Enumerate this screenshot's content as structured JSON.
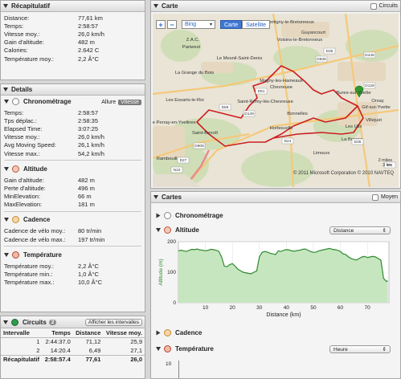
{
  "summary": {
    "title": "Récapitulatif",
    "rows": [
      {
        "k": "Distance:",
        "v": "77,61 km"
      },
      {
        "k": "Temps:",
        "v": "2:58:57"
      },
      {
        "k": "Vitesse moy.:",
        "v": "26,0 km/h"
      },
      {
        "k": "Gain d'altitude:",
        "v": "482 m"
      },
      {
        "k": "Calories:",
        "v": "2.642 C"
      },
      {
        "k": "Température moy.:",
        "v": "2,2 Â°C"
      }
    ]
  },
  "details": {
    "title": "Details",
    "chrono": {
      "title": "Chronométrage",
      "allure": "Allure",
      "vitesse": "Vitesse",
      "rows": [
        {
          "k": "Temps:",
          "v": "2:58:57"
        },
        {
          "k": "Tps déplac.:",
          "v": "2:58:35"
        },
        {
          "k": "Elapsed Time:",
          "v": "3:07:25"
        },
        {
          "k": "Vitesse moy.:",
          "v": "26,0 km/h"
        },
        {
          "k": "Avg Moving Speed:",
          "v": "26,1 km/h"
        },
        {
          "k": "Vitesse max.:",
          "v": "54,2 km/h"
        }
      ]
    },
    "altitude": {
      "title": "Altitude",
      "rows": [
        {
          "k": "Gain d'altitude:",
          "v": "482 m"
        },
        {
          "k": "Perte d'altitude:",
          "v": "496 m"
        },
        {
          "k": "MinElevation:",
          "v": "66 m"
        },
        {
          "k": "MaxElevation:",
          "v": "181 m"
        }
      ]
    },
    "cadence": {
      "title": "Cadence",
      "rows": [
        {
          "k": "Cadence de vélo moy.:",
          "v": "80 tr/min"
        },
        {
          "k": "Cadence de vélo max.:",
          "v": "197 tr/min"
        }
      ]
    },
    "temperature": {
      "title": "Température",
      "rows": [
        {
          "k": "Température moy.:",
          "v": "2,2 Â°C"
        },
        {
          "k": "Température min.:",
          "v": "1,0 Â°C"
        },
        {
          "k": "Température max.:",
          "v": "10,0 Â°C"
        }
      ]
    }
  },
  "circuits": {
    "title": "Circuits",
    "count": "2",
    "show_button": "Afficher les intervalles",
    "headers": [
      "Intervalle",
      "Temps",
      "Distance",
      "Vitesse moy."
    ],
    "rows": [
      [
        "1",
        "2:44:37.0",
        "71,12",
        "25,9"
      ],
      [
        "2",
        "14:20.4",
        "6,49",
        "27,1"
      ]
    ],
    "total": [
      "Récapitulatif",
      "2:58:57.4",
      "77,61",
      "26,0"
    ]
  },
  "map": {
    "title": "Carte",
    "circuits_label": "Circuits",
    "zoom_in": "+",
    "zoom_out": "−",
    "provider": "Bing",
    "view_map": "Carte",
    "view_sat": "Satellite",
    "copyright": "© 2011 Microsoft Corporation  © 2010 NAVTEQ",
    "scale_mi": "2 miles",
    "scale_km": "3 km",
    "places": [
      "Montigny-le-Bretonneux",
      "Guyancourt",
      "Voisins-le-Bretonneux",
      "Z.A.C.",
      "Pariwest",
      "Le Mesnil-Saint-Denis",
      "La Grange du Bois",
      "Magny-les-Hameaux",
      "Chevreuse",
      "Les Essarts-le-Roi",
      "Saint-Rémy-lès-Chevreuse",
      "Le Perray-en-Yvelines",
      "Saint-Benoît",
      "Horbouville",
      "Les Ulis",
      "Villejust",
      "Limours",
      "Rambouillet",
      "La Brosse",
      "Orsay",
      "Bures-sur-Yvette",
      "Gif-sur-Yvette",
      "Bonnelles"
    ],
    "roads": [
      "D36",
      "D446",
      "D91",
      "D58",
      "D128",
      "D149",
      "D906",
      "D24",
      "D27",
      "D35",
      "D838",
      "N10",
      "E5"
    ]
  },
  "charts": {
    "title": "Cartes",
    "moyen_label": "Moyen",
    "chrono_label": "Chronométrage",
    "altitude_label": "Altitude",
    "altitude_select": "Distance",
    "cadence_label": "Cadence",
    "temp_label": "Température",
    "temp_select": "Heure",
    "temp_tick": "10"
  },
  "chart_data": {
    "type": "area",
    "xlabel": "Distance (km)",
    "ylabel": "Altitude (m)",
    "xlim": [
      0,
      78
    ],
    "ylim": [
      0,
      200
    ],
    "xticks": [
      10,
      20,
      30,
      40,
      50,
      60,
      70
    ],
    "yticks": [
      0,
      100,
      200
    ],
    "grid": true,
    "x": [
      0,
      1,
      2,
      3,
      4,
      5,
      6,
      7,
      8,
      9,
      10,
      11,
      12,
      13,
      14,
      15,
      16,
      17,
      18,
      19,
      20,
      21,
      22,
      23,
      24,
      25,
      26,
      27,
      28,
      29,
      30,
      31,
      32,
      33,
      34,
      35,
      36,
      37,
      38,
      39,
      40,
      41,
      42,
      43,
      44,
      45,
      46,
      47,
      48,
      49,
      50,
      51,
      52,
      53,
      54,
      55,
      56,
      57,
      58,
      59,
      60,
      61,
      62,
      63,
      64,
      65,
      66,
      67,
      68,
      69,
      70,
      71,
      72,
      73,
      74,
      75,
      76,
      77,
      77.6
    ],
    "y": [
      170,
      172,
      170,
      168,
      172,
      175,
      174,
      176,
      173,
      172,
      170,
      172,
      175,
      174,
      172,
      168,
      150,
      120,
      118,
      125,
      128,
      120,
      110,
      105,
      100,
      98,
      96,
      95,
      100,
      104,
      150,
      165,
      168,
      166,
      162,
      160,
      158,
      170,
      168,
      172,
      174,
      173,
      170,
      169,
      171,
      172,
      175,
      176,
      172,
      168,
      165,
      166,
      170,
      172,
      174,
      176,
      178,
      175,
      174,
      172,
      168,
      160,
      158,
      150,
      145,
      142,
      140,
      145,
      150,
      152,
      148,
      150,
      152,
      150,
      145,
      140,
      80,
      70,
      72
    ]
  },
  "colors": {
    "accent": "#3f78d4",
    "route": "#cc1f1f",
    "altitude_fill": "#c6e6c0",
    "altitude_line": "#2f8a2f",
    "map_bg": "#e9e4d6"
  }
}
